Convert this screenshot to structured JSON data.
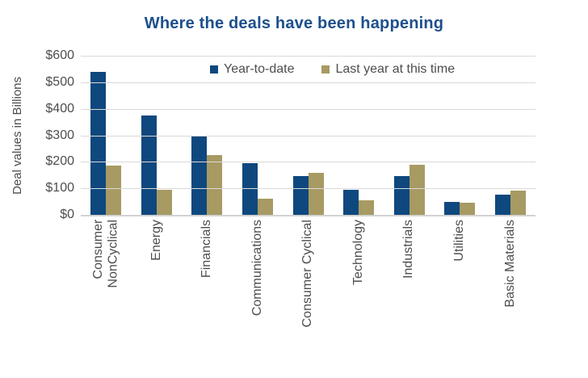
{
  "chart_data": {
    "type": "bar",
    "title": "Where the deals have been happening",
    "ylabel": "Deal values in Billions",
    "xlabel": "",
    "ylim": [
      0,
      600
    ],
    "ytick_step": 100,
    "ytick_labels": [
      "$0",
      "$100",
      "$200",
      "$300",
      "$400",
      "$500",
      "$600"
    ],
    "grid": true,
    "legend_position": "top-inside",
    "categories": [
      "Consumer\nNonCyclical",
      "Energy",
      "Financials",
      "Communications",
      "Consumer Cyclical",
      "Technology",
      "Industrials",
      "Utilities",
      "Basic Materials"
    ],
    "series": [
      {
        "name": "Year-to-date",
        "color": "#0e487e",
        "values": [
          540,
          375,
          295,
          195,
          145,
          95,
          145,
          50,
          75
        ]
      },
      {
        "name": "Last year at this time",
        "color": "#a79a63",
        "values": [
          185,
          95,
          225,
          60,
          158,
          55,
          190,
          45,
          90
        ]
      }
    ]
  },
  "colors": {
    "title_text": "#1d4f8c",
    "axis_text": "#4d4d4d",
    "gridline": "#d9d9d9",
    "background": "#ffffff"
  }
}
